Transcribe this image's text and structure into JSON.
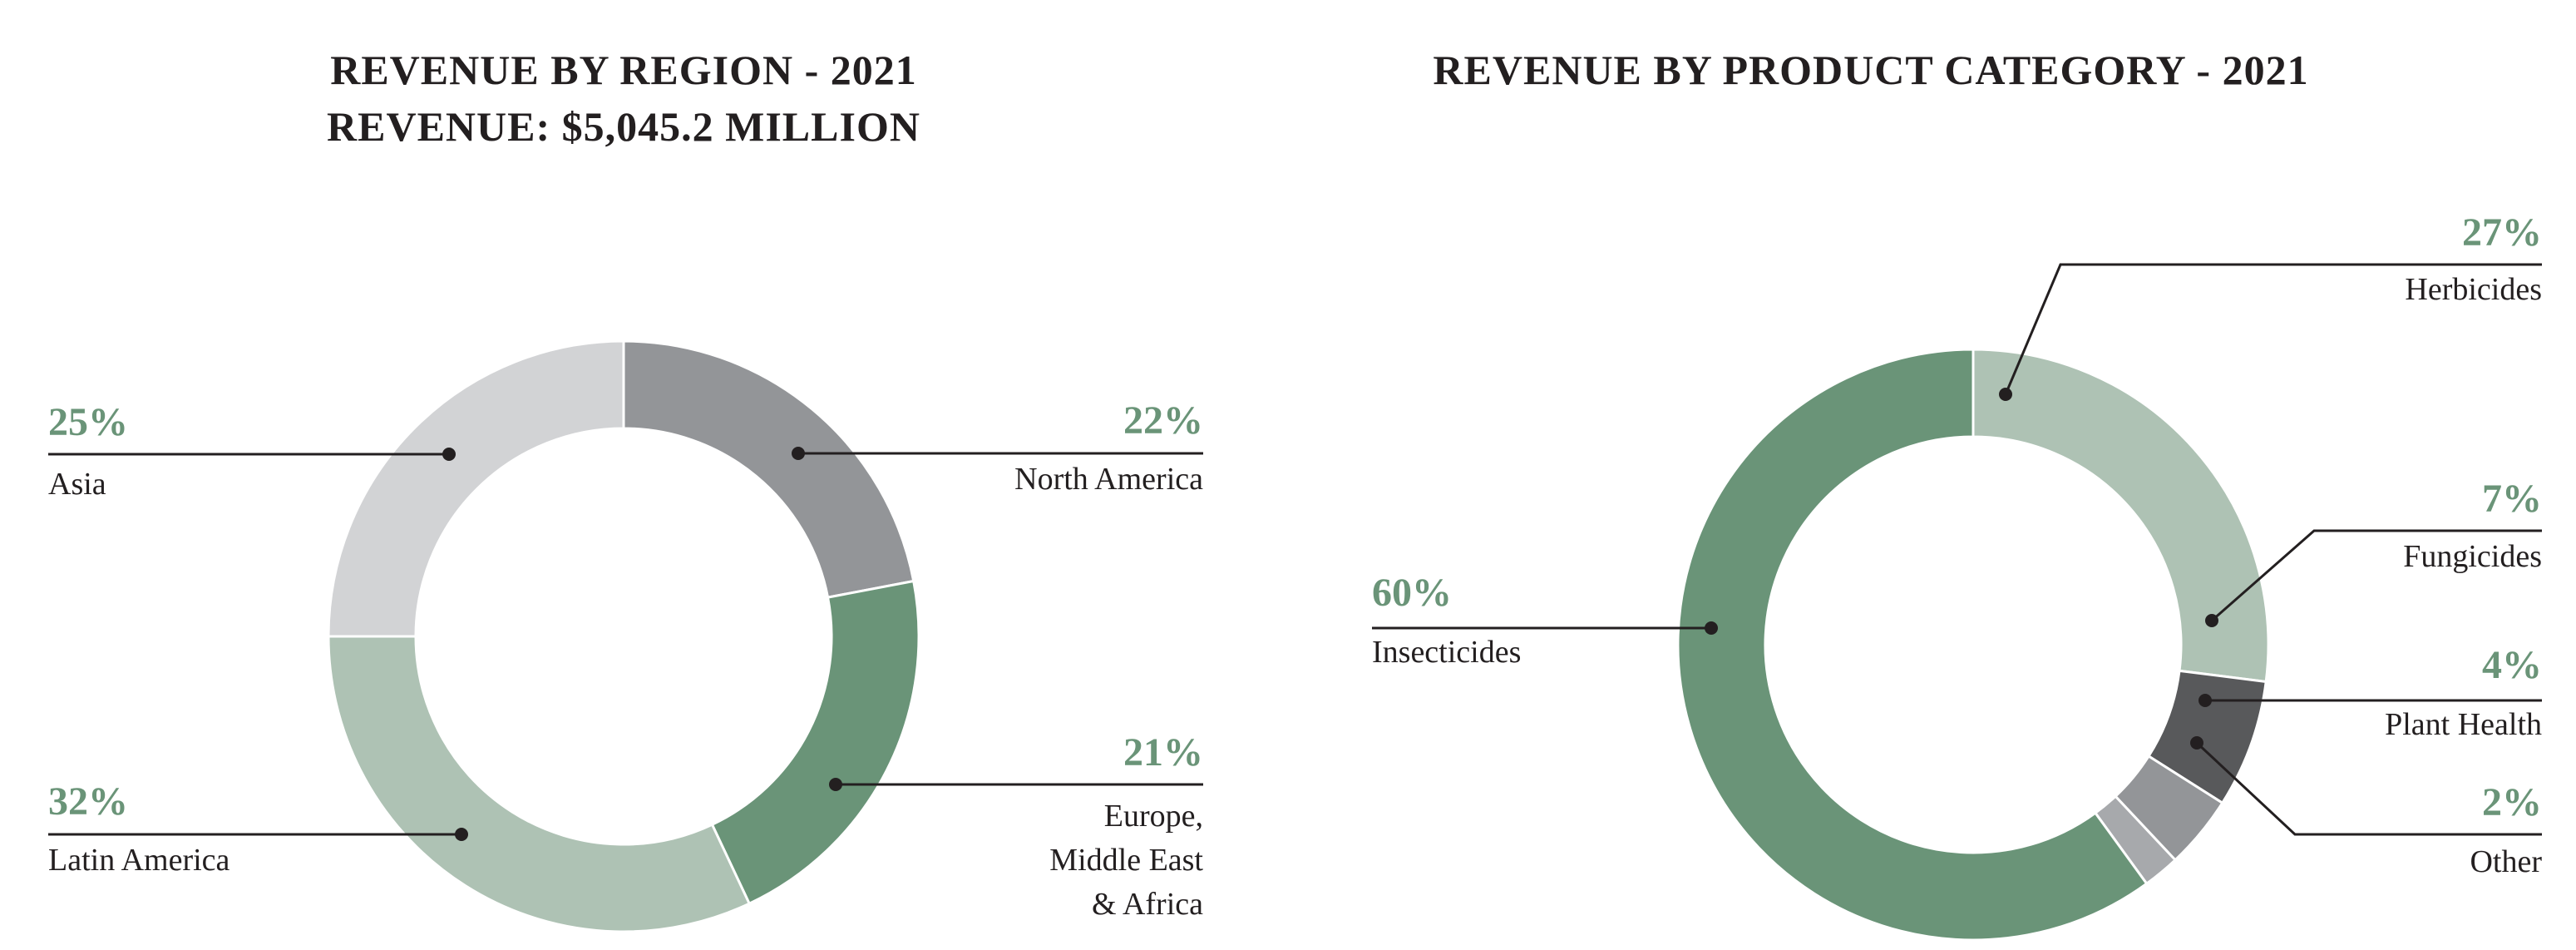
{
  "colors": {
    "accent_green": "#6a9478",
    "light_green": "#aec2b4",
    "light_gray": "#d2d3d5",
    "mid_gray": "#939598",
    "dark_gray": "#58595b",
    "other_gray": "#a7a9ac",
    "leader_line": "#231f20"
  },
  "chart_data": [
    {
      "type": "donut",
      "title_line1": "REVENUE BY REGION - 2021",
      "title_line2": "REVENUE: $5,045.2 MILLION",
      "slices": [
        {
          "name": "North America",
          "value": 22,
          "pct_label": "22%",
          "color": "#939598"
        },
        {
          "name": "Europe, Middle East & Africa",
          "label_lines": [
            "Europe,",
            "Middle East",
            "& Africa"
          ],
          "value": 21,
          "pct_label": "21%",
          "color": "#6a9478"
        },
        {
          "name": "Latin America",
          "value": 32,
          "pct_label": "32%",
          "color": "#aec2b4"
        },
        {
          "name": "Asia",
          "value": 25,
          "pct_label": "25%",
          "color": "#d2d3d5"
        }
      ]
    },
    {
      "type": "donut",
      "title_line1": "REVENUE BY PRODUCT CATEGORY - 2021",
      "slices": [
        {
          "name": "Herbicides",
          "value": 27,
          "pct_label": "27%",
          "color": "#aec2b4"
        },
        {
          "name": "Fungicides",
          "value": 7,
          "pct_label": "7%",
          "color": "#58595b"
        },
        {
          "name": "Plant Health",
          "value": 4,
          "pct_label": "4%",
          "color": "#939598"
        },
        {
          "name": "Other",
          "value": 2,
          "pct_label": "2%",
          "color": "#a7a9ac"
        },
        {
          "name": "Insecticides",
          "value": 60,
          "pct_label": "60%",
          "color": "#6a9478"
        }
      ]
    }
  ]
}
